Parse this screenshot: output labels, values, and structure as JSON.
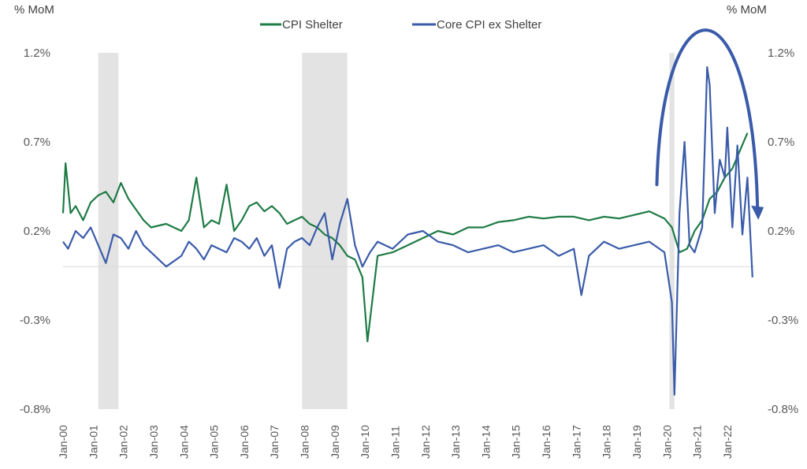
{
  "chart_data": {
    "type": "line",
    "title": "",
    "y_unit_left": "% MoM",
    "y_unit_right": "% MoM",
    "ylim": [
      -0.8,
      1.2
    ],
    "y_ticks": [
      {
        "value": 1.2,
        "label": "1.2%"
      },
      {
        "value": 0.7,
        "label": "0.7%"
      },
      {
        "value": 0.2,
        "label": "0.2%"
      },
      {
        "value": -0.3,
        "label": "-0.3%"
      },
      {
        "value": -0.8,
        "label": "-0.8%"
      }
    ],
    "x_range": [
      "2000-01",
      "2022-12"
    ],
    "x_tick_labels": [
      "Jan-00",
      "Jan-01",
      "Jan-02",
      "Jan-03",
      "Jan-04",
      "Jan-05",
      "Jan-06",
      "Jan-07",
      "Jan-08",
      "Jan-09",
      "Jan-10",
      "Jan-11",
      "Jan-12",
      "Jan-13",
      "Jan-14",
      "Jan-15",
      "Jan-16",
      "Jan-17",
      "Jan-18",
      "Jan-19",
      "Jan-20",
      "Jan-21",
      "Jan-22"
    ],
    "legend_position": "top-center",
    "recession_shading": [
      {
        "start": "2001-03",
        "end": "2001-11"
      },
      {
        "start": "2007-12",
        "end": "2009-06"
      },
      {
        "start": "2020-02",
        "end": "2020-04"
      }
    ],
    "series": [
      {
        "name": "CPI Shelter",
        "color": "#1e7b45",
        "points": [
          [
            "2000-01",
            0.3
          ],
          [
            "2000-02",
            0.58
          ],
          [
            "2000-04",
            0.3
          ],
          [
            "2000-06",
            0.34
          ],
          [
            "2000-09",
            0.26
          ],
          [
            "2000-12",
            0.36
          ],
          [
            "2001-03",
            0.4
          ],
          [
            "2001-06",
            0.42
          ],
          [
            "2001-09",
            0.36
          ],
          [
            "2001-12",
            0.47
          ],
          [
            "2002-03",
            0.38
          ],
          [
            "2002-06",
            0.32
          ],
          [
            "2002-09",
            0.26
          ],
          [
            "2002-12",
            0.22
          ],
          [
            "2003-06",
            0.24
          ],
          [
            "2003-12",
            0.2
          ],
          [
            "2004-03",
            0.26
          ],
          [
            "2004-06",
            0.5
          ],
          [
            "2004-09",
            0.22
          ],
          [
            "2004-12",
            0.26
          ],
          [
            "2005-03",
            0.24
          ],
          [
            "2005-06",
            0.46
          ],
          [
            "2005-09",
            0.2
          ],
          [
            "2005-12",
            0.26
          ],
          [
            "2006-03",
            0.34
          ],
          [
            "2006-06",
            0.36
          ],
          [
            "2006-09",
            0.31
          ],
          [
            "2006-12",
            0.34
          ],
          [
            "2007-03",
            0.3
          ],
          [
            "2007-06",
            0.24
          ],
          [
            "2007-09",
            0.26
          ],
          [
            "2007-12",
            0.28
          ],
          [
            "2008-03",
            0.24
          ],
          [
            "2008-06",
            0.22
          ],
          [
            "2008-09",
            0.18
          ],
          [
            "2008-12",
            0.16
          ],
          [
            "2009-03",
            0.12
          ],
          [
            "2009-06",
            0.06
          ],
          [
            "2009-09",
            0.04
          ],
          [
            "2009-12",
            -0.06
          ],
          [
            "2010-02",
            -0.42
          ],
          [
            "2010-06",
            0.06
          ],
          [
            "2010-12",
            0.08
          ],
          [
            "2011-06",
            0.12
          ],
          [
            "2011-12",
            0.16
          ],
          [
            "2012-06",
            0.2
          ],
          [
            "2012-12",
            0.18
          ],
          [
            "2013-06",
            0.22
          ],
          [
            "2013-12",
            0.22
          ],
          [
            "2014-06",
            0.25
          ],
          [
            "2014-12",
            0.26
          ],
          [
            "2015-06",
            0.28
          ],
          [
            "2015-12",
            0.27
          ],
          [
            "2016-06",
            0.28
          ],
          [
            "2016-12",
            0.28
          ],
          [
            "2017-06",
            0.26
          ],
          [
            "2017-12",
            0.28
          ],
          [
            "2018-06",
            0.27
          ],
          [
            "2018-12",
            0.29
          ],
          [
            "2019-06",
            0.31
          ],
          [
            "2019-12",
            0.27
          ],
          [
            "2020-03",
            0.22
          ],
          [
            "2020-06",
            0.08
          ],
          [
            "2020-09",
            0.1
          ],
          [
            "2020-12",
            0.2
          ],
          [
            "2021-03",
            0.26
          ],
          [
            "2021-06",
            0.38
          ],
          [
            "2021-09",
            0.42
          ],
          [
            "2021-12",
            0.5
          ],
          [
            "2022-03",
            0.55
          ],
          [
            "2022-06",
            0.65
          ],
          [
            "2022-09",
            0.75
          ]
        ]
      },
      {
        "name": "Core CPI ex Shelter",
        "color": "#3a5ba9",
        "points": [
          [
            "2000-01",
            0.14
          ],
          [
            "2000-03",
            0.1
          ],
          [
            "2000-06",
            0.2
          ],
          [
            "2000-09",
            0.16
          ],
          [
            "2000-12",
            0.22
          ],
          [
            "2001-03",
            0.12
          ],
          [
            "2001-06",
            0.02
          ],
          [
            "2001-09",
            0.18
          ],
          [
            "2001-12",
            0.16
          ],
          [
            "2002-03",
            0.1
          ],
          [
            "2002-06",
            0.2
          ],
          [
            "2002-09",
            0.12
          ],
          [
            "2002-12",
            0.08
          ],
          [
            "2003-06",
            0.0
          ],
          [
            "2003-12",
            0.06
          ],
          [
            "2004-03",
            0.14
          ],
          [
            "2004-06",
            0.1
          ],
          [
            "2004-09",
            0.04
          ],
          [
            "2004-12",
            0.12
          ],
          [
            "2005-03",
            0.1
          ],
          [
            "2005-06",
            0.08
          ],
          [
            "2005-09",
            0.16
          ],
          [
            "2005-12",
            0.14
          ],
          [
            "2006-03",
            0.1
          ],
          [
            "2006-06",
            0.16
          ],
          [
            "2006-09",
            0.06
          ],
          [
            "2006-12",
            0.12
          ],
          [
            "2007-03",
            -0.12
          ],
          [
            "2007-06",
            0.1
          ],
          [
            "2007-09",
            0.14
          ],
          [
            "2007-12",
            0.16
          ],
          [
            "2008-03",
            0.12
          ],
          [
            "2008-06",
            0.22
          ],
          [
            "2008-09",
            0.3
          ],
          [
            "2008-12",
            0.04
          ],
          [
            "2009-03",
            0.24
          ],
          [
            "2009-06",
            0.38
          ],
          [
            "2009-09",
            0.12
          ],
          [
            "2009-12",
            0.0
          ],
          [
            "2010-03",
            0.08
          ],
          [
            "2010-06",
            0.14
          ],
          [
            "2010-12",
            0.1
          ],
          [
            "2011-06",
            0.18
          ],
          [
            "2011-12",
            0.2
          ],
          [
            "2012-06",
            0.14
          ],
          [
            "2012-12",
            0.12
          ],
          [
            "2013-06",
            0.08
          ],
          [
            "2013-12",
            0.1
          ],
          [
            "2014-06",
            0.12
          ],
          [
            "2014-12",
            0.08
          ],
          [
            "2015-06",
            0.1
          ],
          [
            "2015-12",
            0.12
          ],
          [
            "2016-06",
            0.06
          ],
          [
            "2016-12",
            0.1
          ],
          [
            "2017-03",
            -0.16
          ],
          [
            "2017-06",
            0.06
          ],
          [
            "2017-12",
            0.14
          ],
          [
            "2018-06",
            0.1
          ],
          [
            "2018-12",
            0.12
          ],
          [
            "2019-06",
            0.14
          ],
          [
            "2019-12",
            0.08
          ],
          [
            "2020-03",
            -0.2
          ],
          [
            "2020-04",
            -0.72
          ],
          [
            "2020-06",
            0.3
          ],
          [
            "2020-08",
            0.7
          ],
          [
            "2020-10",
            0.12
          ],
          [
            "2020-12",
            0.08
          ],
          [
            "2021-03",
            0.22
          ],
          [
            "2021-04",
            0.65
          ],
          [
            "2021-05",
            1.12
          ],
          [
            "2021-06",
            1.02
          ],
          [
            "2021-08",
            0.3
          ],
          [
            "2021-10",
            0.6
          ],
          [
            "2021-12",
            0.5
          ],
          [
            "2022-01",
            0.78
          ],
          [
            "2022-03",
            0.22
          ],
          [
            "2022-05",
            0.68
          ],
          [
            "2022-07",
            0.18
          ],
          [
            "2022-09",
            0.5
          ],
          [
            "2022-11",
            -0.06
          ]
        ]
      }
    ],
    "annotation": {
      "type": "arc-arrow",
      "color": "#3a5ba9",
      "from": [
        "2019-09",
        0.46
      ],
      "peak": [
        "2021-06",
        1.55
      ],
      "to": [
        "2023-01",
        0.28
      ]
    }
  }
}
